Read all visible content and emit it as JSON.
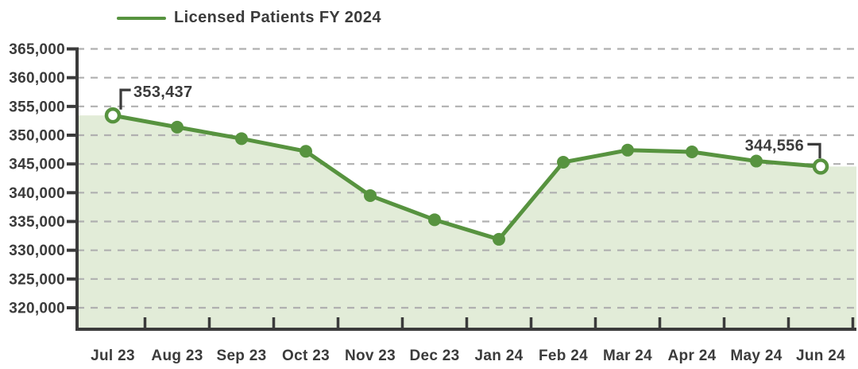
{
  "chart_data": {
    "type": "line",
    "title": "",
    "legend": "Licensed Patients FY 2024",
    "legend_position": "top-left",
    "xlabel": "",
    "ylabel": "",
    "grid": "horizontal-dashed",
    "categories": [
      "Jul 23",
      "Aug 23",
      "Sep 23",
      "Oct 23",
      "Nov 23",
      "Dec 23",
      "Jan 24",
      "Feb 24",
      "Mar 24",
      "Apr 24",
      "May 24",
      "Jun 24"
    ],
    "series": [
      {
        "name": "Licensed Patients FY 2024",
        "values": [
          353437,
          351400,
          349400,
          347200,
          339500,
          335300,
          331900,
          345300,
          347400,
          347100,
          345500,
          344556
        ]
      }
    ],
    "y_axis": {
      "min": 320000,
      "max": 365000,
      "step": 5000,
      "tick_labels": [
        "365,000",
        "360,000",
        "355,000",
        "350,000",
        "345,000",
        "340,000",
        "335,000",
        "330,000",
        "325,000",
        "320,000"
      ]
    },
    "ylim": [
      320000,
      365000
    ],
    "annotations": [
      {
        "index": 0,
        "label": "353,437",
        "direction": "right"
      },
      {
        "index": 11,
        "label": "344,556",
        "direction": "left"
      }
    ],
    "colors": {
      "line": "#57933f",
      "area_fill": "#e2ecd8",
      "marker_open_fill": "#ffffff",
      "grid": "#b0b0b0",
      "axis": "#3b3b3b",
      "text": "#3b3b3b"
    }
  }
}
